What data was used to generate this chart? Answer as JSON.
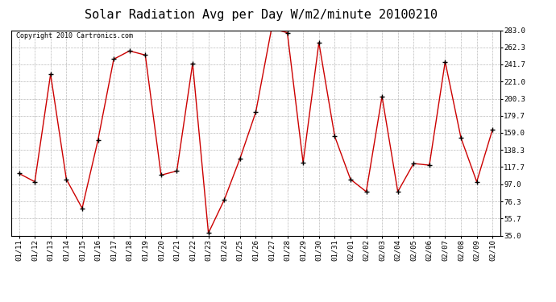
{
  "title": "Solar Radiation Avg per Day W/m2/minute 20100210",
  "copyright_text": "Copyright 2010 Cartronics.com",
  "dates": [
    "01/11",
    "01/12",
    "01/13",
    "01/14",
    "01/15",
    "01/16",
    "01/17",
    "01/18",
    "01/19",
    "01/20",
    "01/21",
    "01/22",
    "01/23",
    "01/24",
    "01/25",
    "01/26",
    "01/27",
    "01/28",
    "01/29",
    "01/30",
    "01/31",
    "02/01",
    "02/02",
    "02/03",
    "02/04",
    "02/05",
    "02/06",
    "02/07",
    "02/08",
    "02/09",
    "02/10"
  ],
  "values": [
    110,
    100,
    230,
    103,
    68,
    150,
    248,
    258,
    253,
    108,
    113,
    243,
    38,
    78,
    128,
    184,
    285,
    280,
    123,
    268,
    155,
    103,
    88,
    203,
    88,
    122,
    120,
    245,
    153,
    100,
    163
  ],
  "line_color": "#cc0000",
  "marker_color": "#000000",
  "bg_color": "#ffffff",
  "plot_bg_color": "#ffffff",
  "grid_color": "#bbbbbb",
  "yticks": [
    35.0,
    55.7,
    76.3,
    97.0,
    117.7,
    138.3,
    159.0,
    179.7,
    200.3,
    221.0,
    241.7,
    262.3,
    283.0
  ],
  "ymin": 35.0,
  "ymax": 283.0,
  "title_fontsize": 11,
  "tick_fontsize": 6.5,
  "copyright_fontsize": 6
}
